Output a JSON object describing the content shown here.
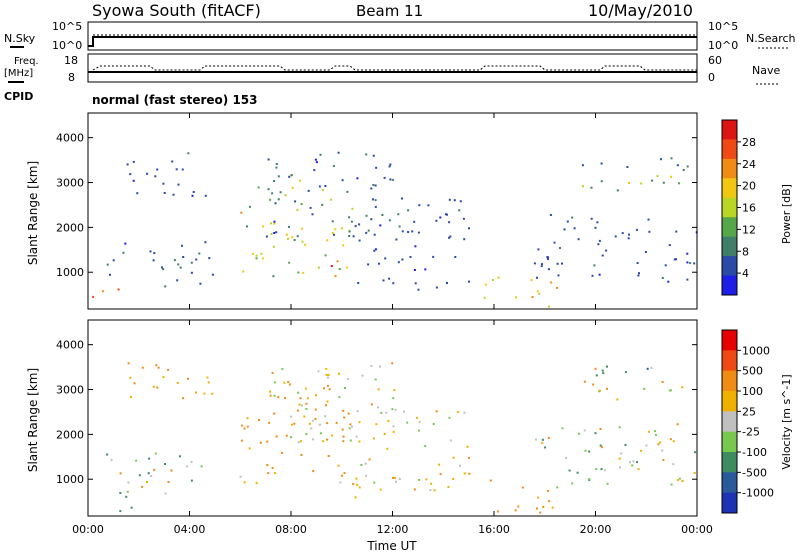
{
  "header": {
    "station": "Syowa South (fitACF)",
    "beam": "Beam 11",
    "date": "10/May/2010"
  },
  "top_panels": {
    "nsky_label": "N.Sky",
    "nsky_ticks": [
      "10^5",
      "10^0"
    ],
    "nsearch_label": "N.Search",
    "nsearch_ticks": [
      "10^5",
      "10^0"
    ],
    "freq_label": "Freq.",
    "freq_unit": "[MHz]",
    "freq_ticks": [
      "18",
      "8"
    ],
    "nave_label": "Nave",
    "nave_ticks": [
      "60",
      "0"
    ],
    "cpid_label": "CPID",
    "cpid_value": "normal (fast stereo) 153"
  },
  "colors": {
    "power": [
      "#1e1ee6",
      "#2a4aa8",
      "#3f7f6a",
      "#56a64a",
      "#b8d623",
      "#f0c814",
      "#f08c14",
      "#f04a14",
      "#dc1414"
    ],
    "velocity": [
      "#e60000",
      "#f04a14",
      "#f08c14",
      "#f0b000",
      "#c0c0c0",
      "#78c850",
      "#3c8c60",
      "#2a5a9a",
      "#1e32b4"
    ]
  },
  "chart_data": [
    {
      "type": "heatmap",
      "name": "Power",
      "xlabel": "Time UT",
      "ylabel": "Slant Range [km]",
      "x_ticks": [
        "00:00",
        "04:00",
        "08:00",
        "12:00",
        "16:00",
        "20:00",
        "00:00"
      ],
      "x_range_hours": [
        0,
        24
      ],
      "y_ticks": [
        "1000",
        "2000",
        "3000",
        "4000"
      ],
      "ylim": [
        180,
        4550
      ],
      "colorbar_label": "Power [dB]",
      "colorbar_ticks": [
        "4",
        "8",
        "12",
        "16",
        "20",
        "24",
        "28"
      ],
      "clim": [
        0,
        30
      ],
      "regions": [
        {
          "t": [
            0.0,
            1.7
          ],
          "r": [
            300,
            650
          ],
          "v": [
            18,
            26
          ]
        },
        {
          "t": [
            0.5,
            5.0
          ],
          "r": [
            700,
            1700
          ],
          "v": [
            3,
            8
          ]
        },
        {
          "t": [
            1.5,
            5.0
          ],
          "r": [
            2700,
            3700
          ],
          "v": [
            3,
            7
          ]
        },
        {
          "t": [
            5.5,
            10.5
          ],
          "r": [
            900,
            1300
          ],
          "v": [
            6,
            28
          ]
        },
        {
          "t": [
            6.0,
            10.5
          ],
          "r": [
            1300,
            2500
          ],
          "v": [
            8,
            22
          ]
        },
        {
          "t": [
            6.5,
            9.8
          ],
          "r": [
            2500,
            3200
          ],
          "v": [
            6,
            18
          ]
        },
        {
          "t": [
            7.0,
            12.5
          ],
          "r": [
            1800,
            3700
          ],
          "v": [
            3,
            9
          ]
        },
        {
          "t": [
            10.5,
            15.0
          ],
          "r": [
            600,
            2700
          ],
          "v": [
            3,
            7
          ]
        },
        {
          "t": [
            15.5,
            18.5
          ],
          "r": [
            250,
            1000
          ],
          "v": [
            10,
            24
          ]
        },
        {
          "t": [
            17.5,
            24.0
          ],
          "r": [
            800,
            2300
          ],
          "v": [
            3,
            7
          ]
        },
        {
          "t": [
            19.0,
            24.0
          ],
          "r": [
            3300,
            3600
          ],
          "v": [
            3,
            8
          ]
        },
        {
          "t": [
            19.0,
            24.0
          ],
          "r": [
            2800,
            3200
          ],
          "v": [
            6,
            18
          ]
        }
      ]
    },
    {
      "type": "heatmap",
      "name": "Velocity",
      "xlabel": "Time UT",
      "ylabel": "Slant Range [km]",
      "x_ticks": [
        "00:00",
        "04:00",
        "08:00",
        "12:00",
        "16:00",
        "20:00",
        "00:00"
      ],
      "x_range_hours": [
        0,
        24
      ],
      "y_ticks": [
        "1000",
        "2000",
        "3000",
        "4000"
      ],
      "ylim": [
        180,
        4550
      ],
      "colorbar_label": "Velocity [m s^-1]",
      "colorbar_ticks": [
        "1000",
        "500",
        "100",
        "25",
        "-25",
        "-100",
        "-500",
        "-1000"
      ],
      "clim": [
        -1000,
        1000
      ],
      "regions": [
        {
          "t": [
            0.0,
            1.7
          ],
          "r": [
            300,
            650
          ],
          "v": [
            100,
            600
          ]
        },
        {
          "t": [
            0.5,
            5.0
          ],
          "r": [
            700,
            1700
          ],
          "v": [
            -200,
            200
          ]
        },
        {
          "t": [
            1.5,
            5.0
          ],
          "r": [
            2700,
            3700
          ],
          "v": [
            -200,
            -25
          ]
        },
        {
          "t": [
            5.5,
            10.5
          ],
          "r": [
            900,
            1300
          ],
          "v": [
            -500,
            25
          ]
        },
        {
          "t": [
            6.0,
            10.5
          ],
          "r": [
            1300,
            2500
          ],
          "v": [
            -300,
            -60
          ]
        },
        {
          "t": [
            6.5,
            9.8
          ],
          "r": [
            2500,
            3200
          ],
          "v": [
            -200,
            -25
          ]
        },
        {
          "t": [
            7.0,
            12.5
          ],
          "r": [
            1800,
            3700
          ],
          "v": [
            -150,
            100
          ]
        },
        {
          "t": [
            10.5,
            15.0
          ],
          "r": [
            600,
            2700
          ],
          "v": [
            -150,
            50
          ]
        },
        {
          "t": [
            15.5,
            18.5
          ],
          "r": [
            250,
            1000
          ],
          "v": [
            -400,
            -60
          ]
        },
        {
          "t": [
            17.5,
            24.0
          ],
          "r": [
            800,
            2300
          ],
          "v": [
            -150,
            150
          ]
        },
        {
          "t": [
            19.0,
            24.0
          ],
          "r": [
            3300,
            3600
          ],
          "v": [
            -200,
            600
          ]
        },
        {
          "t": [
            19.0,
            24.0
          ],
          "r": [
            2800,
            3200
          ],
          "v": [
            -200,
            100
          ]
        }
      ]
    }
  ]
}
